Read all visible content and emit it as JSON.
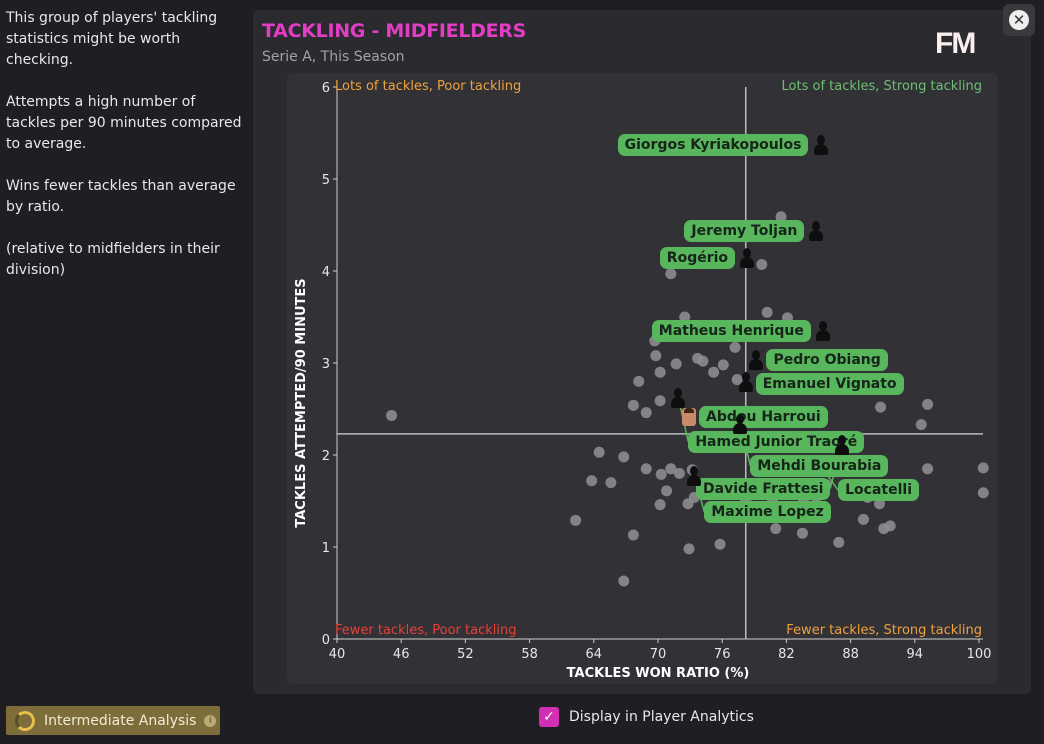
{
  "side_text": [
    "This group of players' tackling statistics might be worth checking.",
    "Attempts a high number of tackles per 90 minutes compared to average.",
    "Wins fewer tackles than average by ratio.",
    "(relative to midfielders in their division)"
  ],
  "header": {
    "title": "TACKLING - MIDFIELDERS",
    "subtitle": "Serie A, This Season",
    "logo": "FM",
    "close_icon": "close-icon"
  },
  "footer": {
    "analysis_label": "Intermediate Analysis",
    "checkbox_label": "Display in Player Analytics",
    "checkbox_checked": true
  },
  "colors": {
    "title": "#e23ec3",
    "label_pill": "#58b65c",
    "dot": "#8d8c90",
    "q_poor": "#f0a23c",
    "q_strong": "#6fbf73",
    "q_fewer_poor": "#e8403a"
  },
  "chart_data": {
    "type": "scatter",
    "xlabel": "TACKLES WON RATIO (%)",
    "ylabel": "TACKLES ATTEMPTED/90 MINUTES",
    "xlim": [
      40,
      100
    ],
    "ylim": [
      0,
      6
    ],
    "xticks": [
      40,
      46,
      52,
      58,
      64,
      70,
      76,
      82,
      88,
      94,
      100
    ],
    "yticks": [
      0,
      1,
      2,
      3,
      4,
      5,
      6
    ],
    "average": {
      "x": 78.2,
      "y": 2.23
    },
    "quadrants": {
      "top_left": "Lots of tackles, Poor tackling",
      "top_right": "Lots of tackles, Strong tackling",
      "bottom_left": "Fewer tackles, Poor tackling",
      "bottom_right": "Fewer tackles, Strong tackling"
    },
    "highlighted": [
      {
        "name": "Giorgos Kyriakopoulos",
        "x": 85.2,
        "y": 5.37,
        "label_side": "left"
      },
      {
        "name": "Jeremy Toljan",
        "x": 84.8,
        "y": 4.43,
        "label_side": "left"
      },
      {
        "name": "Rogério",
        "x": 78.3,
        "y": 4.14,
        "label_side": "left"
      },
      {
        "name": "Matheus Henrique",
        "x": 85.4,
        "y": 3.35,
        "label_side": "left"
      },
      {
        "name": "Pedro Obiang",
        "x": 79.2,
        "y": 3.03,
        "label_side": "right"
      },
      {
        "name": "Emanuel Vignato",
        "x": 78.2,
        "y": 2.79,
        "label_side": "right"
      },
      {
        "name": "Abdou Harroui",
        "x": 72.9,
        "y": 2.41,
        "label_side": "right",
        "photo": true
      },
      {
        "name": "Hamed Junior Traoré",
        "x": 71.9,
        "y": 2.62,
        "label_side": "right"
      },
      {
        "name": "Mehdi Bourabia",
        "x": 77.7,
        "y": 2.34,
        "label_side": "right"
      },
      {
        "name": "Davide Frattesi",
        "x": 87.2,
        "y": 2.11,
        "label_side": "left"
      },
      {
        "name": "Maxime Lopez",
        "x": 73.4,
        "y": 1.77,
        "label_side": "right"
      },
      {
        "name": "Locatelli",
        "x": 85.9,
        "y": 1.77,
        "label_side": "right",
        "no_icon": true
      }
    ],
    "points": [
      [
        45.1,
        2.43
      ],
      [
        62.3,
        1.29
      ],
      [
        63.8,
        1.72
      ],
      [
        64.5,
        2.03
      ],
      [
        65.6,
        1.7
      ],
      [
        66.8,
        1.98
      ],
      [
        66.8,
        0.63
      ],
      [
        67.7,
        1.13
      ],
      [
        68.2,
        2.8
      ],
      [
        67.7,
        2.54
      ],
      [
        68.9,
        2.46
      ],
      [
        68.9,
        1.85
      ],
      [
        69.7,
        3.24
      ],
      [
        69.8,
        3.08
      ],
      [
        70.2,
        2.9
      ],
      [
        70.2,
        2.59
      ],
      [
        70.2,
        1.46
      ],
      [
        70.3,
        1.79
      ],
      [
        70.8,
        1.61
      ],
      [
        71.2,
        3.97
      ],
      [
        71.2,
        1.85
      ],
      [
        71.7,
        2.99
      ],
      [
        72.0,
        1.8
      ],
      [
        72.5,
        3.5
      ],
      [
        72.8,
        1.47
      ],
      [
        72.9,
        0.98
      ],
      [
        73.2,
        1.84
      ],
      [
        73.4,
        1.54
      ],
      [
        73.7,
        3.05
      ],
      [
        74.2,
        3.02
      ],
      [
        74.8,
        3.36
      ],
      [
        75.2,
        2.9
      ],
      [
        75.8,
        1.03
      ],
      [
        76.1,
        2.98
      ],
      [
        77.2,
        3.17
      ],
      [
        77.4,
        2.82
      ],
      [
        77.7,
        1.58
      ],
      [
        78.2,
        1.51
      ],
      [
        78.8,
        1.61
      ],
      [
        79.7,
        4.07
      ],
      [
        80.2,
        3.55
      ],
      [
        80.3,
        1.62
      ],
      [
        80.3,
        1.35
      ],
      [
        80.7,
        1.51
      ],
      [
        81.0,
        1.2
      ],
      [
        81.5,
        4.59
      ],
      [
        82.1,
        3.49
      ],
      [
        82.5,
        2.47
      ],
      [
        83.3,
        1.89
      ],
      [
        83.5,
        1.15
      ],
      [
        83.6,
        1.51
      ],
      [
        84.0,
        1.65
      ],
      [
        84.8,
        1.54
      ],
      [
        85.7,
        1.68
      ],
      [
        86.9,
        1.05
      ],
      [
        88.1,
        1.68
      ],
      [
        89.2,
        1.3
      ],
      [
        89.6,
        1.54
      ],
      [
        90.7,
        1.47
      ],
      [
        90.8,
        2.52
      ],
      [
        91.1,
        1.2
      ],
      [
        91.7,
        1.23
      ],
      [
        94.6,
        2.33
      ],
      [
        95.2,
        2.55
      ],
      [
        95.2,
        1.85
      ],
      [
        100.4,
        1.86
      ],
      [
        100.4,
        1.59
      ]
    ]
  }
}
